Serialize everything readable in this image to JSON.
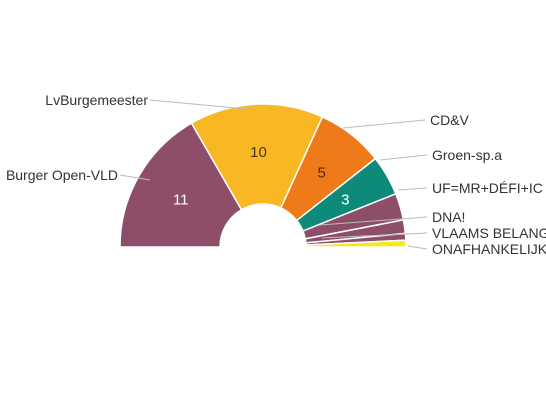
{
  "chart_data": {
    "type": "pie",
    "variant": "semicircle-parliament",
    "title": "",
    "slices": [
      {
        "name": "Burger Open-VLD",
        "value": 11,
        "color": "#8e4e69",
        "label_text": "11",
        "label_color": "#ffffff"
      },
      {
        "name": "LvBurgemeester",
        "value": 10,
        "color": "#f7b824",
        "label_text": "10",
        "label_color": "#4a3a10"
      },
      {
        "name": "CD&V",
        "value": 5,
        "color": "#ef7a1a",
        "label_text": "5",
        "label_color": "#4a2a10"
      },
      {
        "name": "Groen-sp.a",
        "value": 3,
        "color": "#0e8a7a",
        "label_text": "3",
        "label_color": "#ffffff"
      },
      {
        "name": "UF=MR+DÉFI+IC",
        "value": 2,
        "color": "#8e4e69",
        "label_text": "",
        "label_color": "#ffffff"
      },
      {
        "name": "DNA!",
        "value": 1,
        "color": "#8e4e69",
        "label_text": "",
        "label_color": "#ffffff"
      },
      {
        "name": "VLAAMS BELANG",
        "value": 0.5,
        "color": "#8e4e69",
        "label_text": "",
        "label_color": "#ffffff"
      },
      {
        "name": "ONAFHANKELIJK",
        "value": 0.5,
        "color": "#f9e51a",
        "label_text": "",
        "label_color": "#333333"
      }
    ]
  },
  "labels": [
    {
      "text": "Burger Open-VLD"
    },
    {
      "text": "LvBurgemeester"
    },
    {
      "text": "CD&V"
    },
    {
      "text": "Groen-sp.a"
    },
    {
      "text": "UF=MR+DÉFI+IC"
    },
    {
      "text": "DNA!"
    },
    {
      "text": "VLAAMS BELANG"
    },
    {
      "text": "ONAFHANKELIJK"
    }
  ]
}
